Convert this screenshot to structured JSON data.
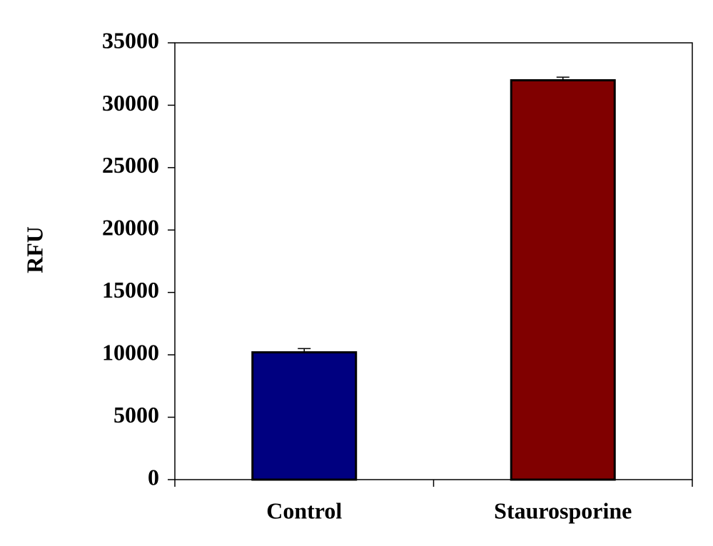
{
  "chart_data": {
    "type": "bar",
    "y_label": "RFU",
    "categories": [
      "Control",
      "Staurosporine"
    ],
    "values": [
      10200,
      32000
    ],
    "errors": [
      300,
      250
    ],
    "colors": [
      "#000080",
      "#800000"
    ],
    "ylim": [
      0,
      35000
    ],
    "yticks": [
      0,
      5000,
      10000,
      15000,
      20000,
      25000,
      30000,
      35000
    ],
    "grid": false
  }
}
